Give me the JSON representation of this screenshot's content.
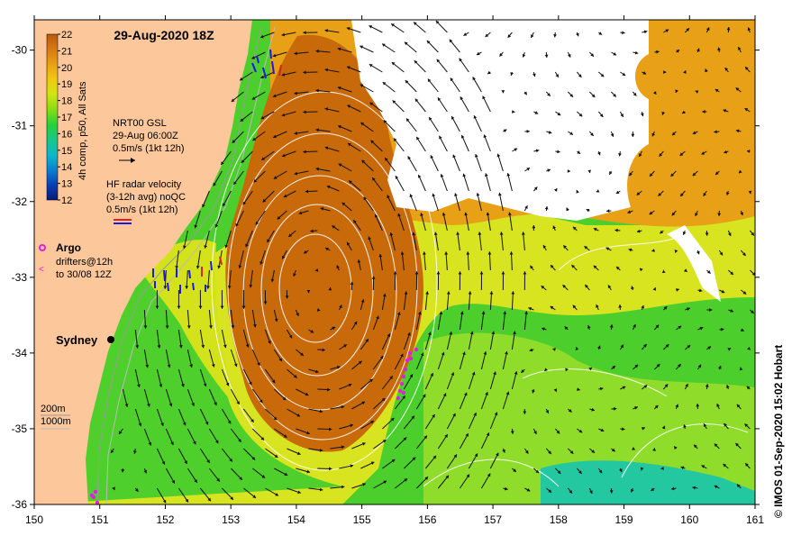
{
  "map": {
    "title": "29-Aug-2020 18Z",
    "credit": "© IMOS 01-Sep-2020 15:02 Hobart",
    "x_ticks": [
      "150",
      "151",
      "152",
      "153",
      "154",
      "155",
      "156",
      "157",
      "158",
      "159",
      "160",
      "161"
    ],
    "y_ticks": [
      "-30",
      "-31",
      "-32",
      "-33",
      "-34",
      "-35",
      "-36"
    ],
    "xlim": [
      150,
      161
    ],
    "ylim": [
      -36,
      -29.6
    ],
    "place": {
      "name": "Sydney",
      "lon": 151.2,
      "lat": -33.87
    }
  },
  "colorbar": {
    "ticks": [
      "22",
      "21",
      "20",
      "19",
      "18",
      "17",
      "16",
      "15",
      "14",
      "13",
      "12"
    ],
    "label": "4h comp, p50, All Sats",
    "min": 12,
    "max": 22,
    "colors": [
      "#081a78",
      "#0a3fb4",
      "#0a7fd2",
      "#0bb8c8",
      "#14c88c",
      "#22d23c",
      "#8cdc14",
      "#d2e414",
      "#f0c814",
      "#e8a014",
      "#d87a10",
      "#b85a0c"
    ]
  },
  "legend": {
    "gsl": {
      "line1": "NRT00 GSL",
      "line2": "29-Aug 06:00Z",
      "line3": "0.5m/s (1kt 12h)"
    },
    "hf": {
      "line1": "HF radar velocity",
      "line2": "(3-12h avg) noQC",
      "line3": "0.5m/s (1kt 12h)"
    },
    "argo": "Argo",
    "drifters_line1": "drifters@12h",
    "drifters_line2": "to 30/08 12Z",
    "depth_200": "200m",
    "depth_1000": "1000m"
  },
  "style": {
    "land": "#fbc79b",
    "cloud": "#ffffff",
    "ocean_warm": "#c8690a",
    "ocean_mid": "#e89c14",
    "ocean_yellow": "#e8e41c",
    "ocean_green": "#3ccc28",
    "drifter": "#e020e0",
    "hf_red": "#e02020",
    "hf_blue": "#1a1ae0"
  }
}
